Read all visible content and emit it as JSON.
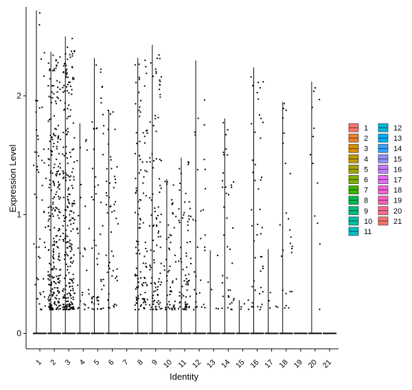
{
  "chart_data": {
    "type": "violin",
    "xlabel": "Identity",
    "ylabel": "Expression Level",
    "ylim": [
      -0.13,
      2.75
    ],
    "yticks": [
      0,
      1,
      2
    ],
    "categories": [
      "1",
      "2",
      "3",
      "4",
      "5",
      "6",
      "7",
      "8",
      "9",
      "10",
      "11",
      "12",
      "13",
      "14",
      "15",
      "16",
      "17",
      "18",
      "19",
      "20",
      "21"
    ],
    "colors": [
      "#F8766D",
      "#EA8331",
      "#D89000",
      "#C09B00",
      "#A3A500",
      "#7CAE00",
      "#39B600",
      "#00BB4E",
      "#00BF7D",
      "#00C1A3",
      "#00BFC4",
      "#00BAE0",
      "#00B0F6",
      "#35A2FF",
      "#9590FF",
      "#C77CFF",
      "#E76BF3",
      "#FA62DB",
      "#FF62BC",
      "#FF6C91",
      "#F8766D"
    ],
    "max_expression": [
      2.72,
      2.37,
      2.5,
      1.77,
      2.32,
      1.88,
      0.0,
      2.32,
      2.43,
      1.3,
      1.48,
      2.3,
      0.7,
      1.81,
      0.28,
      2.24,
      0.71,
      1.95,
      0.0,
      2.12,
      0.0
    ],
    "point_density": [
      0.2,
      1.0,
      1.0,
      0.12,
      0.22,
      0.2,
      0.0,
      0.45,
      0.4,
      0.22,
      0.28,
      0.12,
      0.02,
      0.15,
      0.02,
      0.18,
      0.02,
      0.1,
      0.0,
      0.05,
      0.0
    ],
    "legend": {
      "position": "right",
      "labels": [
        "1",
        "2",
        "3",
        "4",
        "5",
        "6",
        "7",
        "8",
        "9",
        "10",
        "11",
        "12",
        "13",
        "14",
        "15",
        "16",
        "17",
        "18",
        "19",
        "20",
        "21"
      ]
    }
  }
}
